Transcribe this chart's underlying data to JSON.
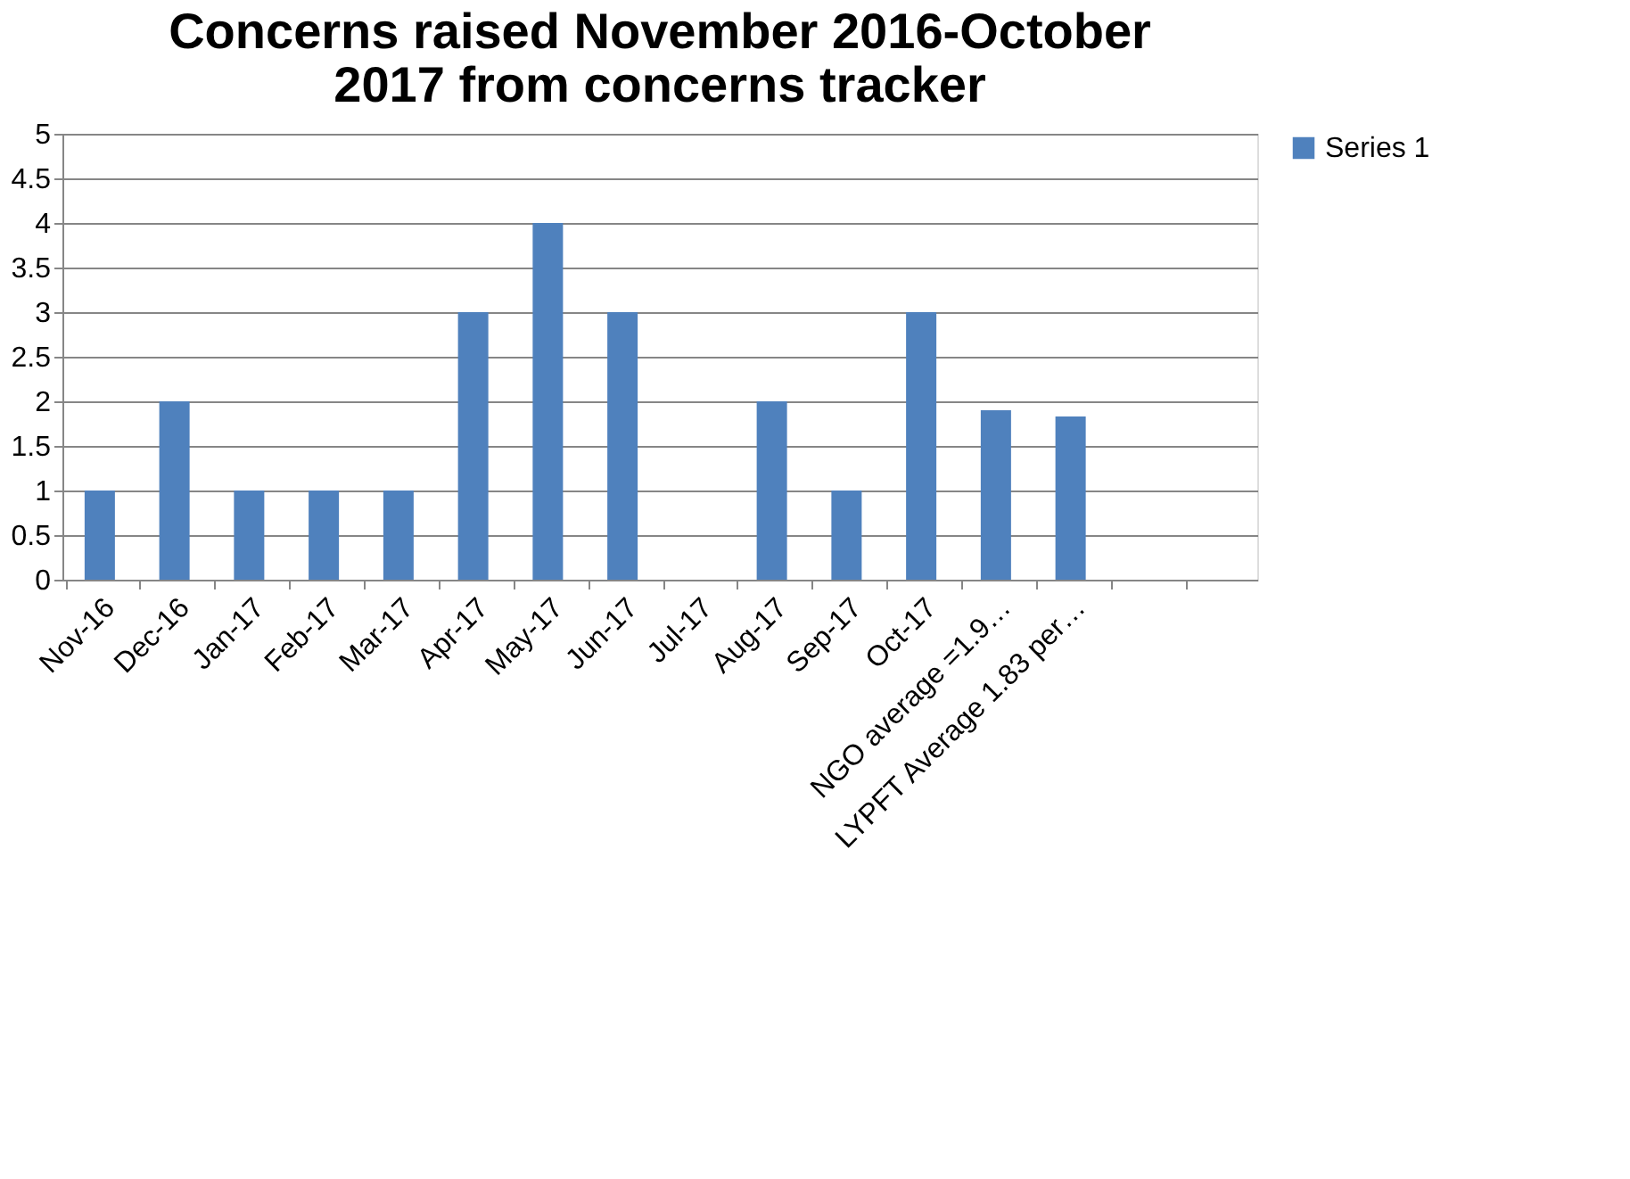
{
  "chart_data": {
    "type": "bar",
    "title": "Concerns raised November 2016-October 2017 from concerns tracker",
    "categories": [
      "Nov-16",
      "Dec-16",
      "Jan-17",
      "Feb-17",
      "Mar-17",
      "Apr-17",
      "May-17",
      "Jun-17",
      "Jul-17",
      "Aug-17",
      "Sep-17",
      "Oct-17",
      "NGO average =1.9…",
      "LYPFT Average 1.83 per…",
      null,
      null
    ],
    "series": [
      {
        "name": "Series 1",
        "color": "#4f81bd",
        "values": [
          1,
          2,
          1,
          1,
          1,
          3,
          4,
          3,
          null,
          2,
          1,
          3,
          1.9,
          1.83,
          null,
          null
        ]
      }
    ],
    "ylim": [
      0,
      5
    ],
    "yticks": [
      0,
      0.5,
      1,
      1.5,
      2,
      2.5,
      3,
      3.5,
      4,
      4.5,
      5
    ],
    "grid": "y",
    "legend": "right"
  }
}
